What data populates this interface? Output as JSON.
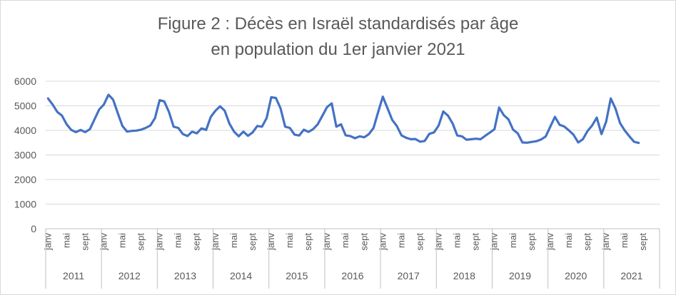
{
  "chart_data": {
    "type": "line",
    "title": "Figure 2 : Décès en Israël standardisés par âge",
    "subtitle": "en population du 1er janvier 2021",
    "xlabel": "",
    "ylabel": "",
    "ylim": [
      0,
      6000
    ],
    "yticks": [
      0,
      1000,
      2000,
      3000,
      4000,
      5000,
      6000
    ],
    "grid": true,
    "legend": "none",
    "line_color": "#4472c4",
    "years": [
      "2011",
      "2012",
      "2013",
      "2014",
      "2015",
      "2016",
      "2017",
      "2018",
      "2019",
      "2020",
      "2021"
    ],
    "month_labels": [
      "janv",
      "mai",
      "sept"
    ],
    "series": [
      {
        "values": [
          5300,
          5050,
          4750,
          4600,
          4250,
          4020,
          3930,
          4020,
          3930,
          4050,
          4450,
          4850,
          5050,
          5450,
          5250,
          4700,
          4180,
          3950,
          3980,
          3990,
          4030,
          4100,
          4200,
          4500,
          5230,
          5180,
          4750,
          4150,
          4100,
          3850,
          3770,
          3950,
          3880,
          4080,
          4020,
          4550,
          4800,
          4980,
          4800,
          4280,
          3950,
          3760,
          3950,
          3780,
          3920,
          4180,
          4150,
          4500,
          5350,
          5320,
          4900,
          4150,
          4100,
          3830,
          3790,
          4030,
          3940,
          4050,
          4250,
          4600,
          4950,
          5100,
          4150,
          4250,
          3800,
          3770,
          3680,
          3760,
          3720,
          3850,
          4100,
          4750,
          5370,
          4900,
          4430,
          4180,
          3800,
          3700,
          3640,
          3650,
          3540,
          3570,
          3860,
          3920,
          4200,
          4770,
          4600,
          4280,
          3790,
          3760,
          3620,
          3640,
          3660,
          3640,
          3780,
          3910,
          4050,
          4930,
          4620,
          4450,
          4030,
          3880,
          3510,
          3500,
          3530,
          3560,
          3630,
          3750,
          4150,
          4550,
          4230,
          4160,
          4000,
          3820,
          3510,
          3640,
          3970,
          4200,
          4520,
          3850,
          4350,
          5300,
          4900,
          4300,
          4000,
          3760,
          3540,
          3490
        ]
      }
    ]
  }
}
